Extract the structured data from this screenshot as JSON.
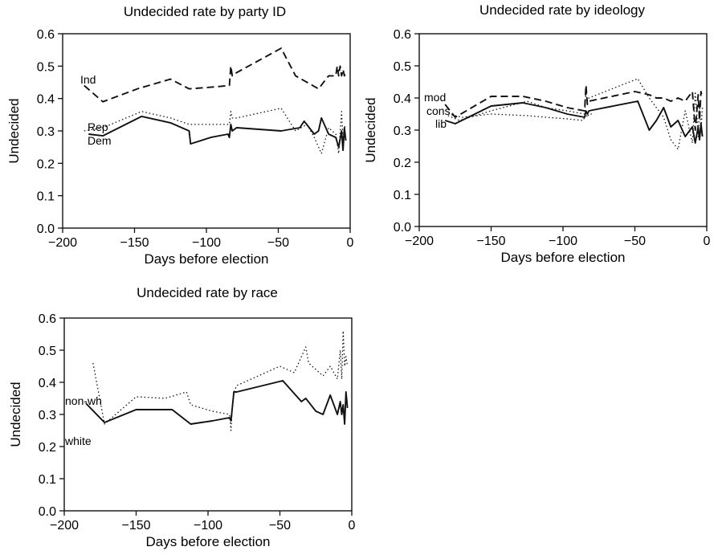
{
  "chart_data": [
    {
      "type": "line",
      "title": "Undecided rate by party ID",
      "xlabel": "Days before election",
      "ylabel": "Undecided",
      "xlim": [
        -200,
        0
      ],
      "ylim": [
        0,
        0.6
      ],
      "xticks": [
        "-200",
        "-150",
        "-100",
        "-50",
        "0"
      ],
      "yticks": [
        "0.0",
        "0.1",
        "0.2",
        "0.3",
        "0.4",
        "0.5",
        "0.6"
      ],
      "grid": false,
      "series": [
        {
          "name": "Ind",
          "style": "dashed",
          "x": [
            -185,
            -172,
            -148,
            -125,
            -112,
            -97,
            -84,
            -83,
            -82,
            -79,
            -48,
            -38,
            -22,
            -15,
            -10,
            -9,
            -8,
            -7,
            -6,
            -5,
            -4,
            -3
          ],
          "y": [
            0.44,
            0.39,
            0.43,
            0.46,
            0.43,
            0.435,
            0.44,
            0.5,
            0.47,
            0.48,
            0.555,
            0.47,
            0.43,
            0.47,
            0.47,
            0.5,
            0.47,
            0.5,
            0.47,
            0.49,
            0.47,
            0.48
          ]
        },
        {
          "name": "Rep",
          "style": "dotted",
          "x": [
            -185,
            -172,
            -145,
            -125,
            -112,
            -97,
            -84,
            -83,
            -82,
            -79,
            -48,
            -38,
            -30,
            -25,
            -20,
            -15,
            -10,
            -8,
            -6,
            -5,
            -4,
            -3
          ],
          "y": [
            0.3,
            0.31,
            0.36,
            0.34,
            0.32,
            0.32,
            0.32,
            0.36,
            0.34,
            0.34,
            0.37,
            0.3,
            0.32,
            0.28,
            0.23,
            0.31,
            0.29,
            0.23,
            0.36,
            0.27,
            0.31,
            0.32
          ]
        },
        {
          "name": "Dem",
          "style": "solid",
          "x": [
            -182,
            -172,
            -145,
            -125,
            -112,
            -111,
            -97,
            -85,
            -84,
            -83,
            -82,
            -79,
            -48,
            -35,
            -32,
            -25,
            -22,
            -20,
            -15,
            -10,
            -8,
            -6,
            -5,
            -4,
            -3
          ],
          "y": [
            0.29,
            0.285,
            0.345,
            0.325,
            0.3,
            0.26,
            0.28,
            0.29,
            0.28,
            0.32,
            0.3,
            0.31,
            0.3,
            0.31,
            0.33,
            0.29,
            0.3,
            0.34,
            0.29,
            0.28,
            0.25,
            0.3,
            0.24,
            0.31,
            0.27
          ]
        }
      ]
    },
    {
      "type": "line",
      "title": "Undecided rate by ideology",
      "xlabel": "Days before election",
      "ylabel": "Undecided",
      "xlim": [
        -200,
        0
      ],
      "ylim": [
        0,
        0.6
      ],
      "xticks": [
        "-200",
        "-150",
        "-100",
        "-50",
        "0"
      ],
      "yticks": [
        "0.0",
        "0.1",
        "0.2",
        "0.3",
        "0.4",
        "0.5",
        "0.6"
      ],
      "grid": false,
      "series": [
        {
          "name": "mod",
          "style": "dashed",
          "x": [
            -182,
            -175,
            -150,
            -128,
            -112,
            -97,
            -85,
            -84,
            -83,
            -82,
            -50,
            -40,
            -35,
            -30,
            -25,
            -20,
            -15,
            -10,
            -8,
            -6,
            -5,
            -4,
            -3
          ],
          "y": [
            0.38,
            0.34,
            0.405,
            0.405,
            0.39,
            0.37,
            0.36,
            0.44,
            0.38,
            0.39,
            0.42,
            0.41,
            0.4,
            0.4,
            0.39,
            0.4,
            0.39,
            0.42,
            0.3,
            0.41,
            0.33,
            0.42,
            0.4
          ]
        },
        {
          "name": "cons",
          "style": "dotted",
          "x": [
            -180,
            -172,
            -150,
            -125,
            -112,
            -97,
            -85,
            -84,
            -83,
            -82,
            -48,
            -40,
            -35,
            -30,
            -25,
            -20,
            -15,
            -10,
            -8,
            -6,
            -5,
            -4,
            -3
          ],
          "y": [
            0.345,
            0.33,
            0.36,
            0.39,
            0.37,
            0.36,
            0.35,
            0.42,
            0.39,
            0.4,
            0.46,
            0.4,
            0.37,
            0.34,
            0.27,
            0.24,
            0.36,
            0.26,
            0.42,
            0.28,
            0.38,
            0.3,
            0.37
          ]
        },
        {
          "name": "lib",
          "style": "dotted",
          "x": [
            -180,
            -170,
            -150,
            -125,
            -112,
            -97,
            -86,
            -84,
            -83,
            -82,
            -80
          ],
          "y": [
            0.35,
            0.34,
            0.35,
            0.345,
            0.34,
            0.335,
            0.33,
            0.35,
            0.34,
            0.35,
            0.35
          ]
        },
        {
          "name": "",
          "style": "solid",
          "x": [
            -182,
            -175,
            -150,
            -128,
            -112,
            -97,
            -85,
            -84,
            -83,
            -82,
            -48,
            -40,
            -35,
            -30,
            -25,
            -20,
            -15,
            -10,
            -8,
            -6,
            -5,
            -4,
            -3
          ],
          "y": [
            0.33,
            0.32,
            0.375,
            0.385,
            0.37,
            0.35,
            0.34,
            0.36,
            0.35,
            0.36,
            0.39,
            0.3,
            0.33,
            0.37,
            0.31,
            0.33,
            0.28,
            0.31,
            0.26,
            0.31,
            0.27,
            0.32,
            0.28
          ]
        }
      ]
    },
    {
      "type": "line",
      "title": "Undecided rate by race",
      "xlabel": "Days before election",
      "ylabel": "Undecided",
      "xlim": [
        -200,
        0
      ],
      "ylim": [
        0,
        0.6
      ],
      "xticks": [
        "-200",
        "-150",
        "-100",
        "-50",
        "0"
      ],
      "yticks": [
        "0.0",
        "0.1",
        "0.2",
        "0.3",
        "0.4",
        "0.5",
        "0.6"
      ],
      "grid": false,
      "series": [
        {
          "name": "non-wh",
          "style": "dotted",
          "x": [
            -180,
            -172,
            -150,
            -130,
            -115,
            -112,
            -97,
            -85,
            -84,
            -83,
            -82,
            -80,
            -50,
            -40,
            -32,
            -30,
            -20,
            -15,
            -10,
            -8,
            -7,
            -6,
            -5,
            -4,
            -3
          ],
          "y": [
            0.46,
            0.27,
            0.355,
            0.35,
            0.37,
            0.33,
            0.31,
            0.3,
            0.25,
            0.33,
            0.37,
            0.39,
            0.45,
            0.43,
            0.51,
            0.46,
            0.42,
            0.45,
            0.41,
            0.5,
            0.41,
            0.56,
            0.45,
            0.48,
            0.45
          ]
        },
        {
          "name": "white",
          "style": "solid",
          "x": [
            -185,
            -172,
            -150,
            -125,
            -112,
            -97,
            -85,
            -84,
            -82,
            -80,
            -48,
            -35,
            -32,
            -25,
            -20,
            -15,
            -10,
            -8,
            -7,
            -6,
            -5,
            -4,
            -3
          ],
          "y": [
            0.335,
            0.275,
            0.315,
            0.315,
            0.27,
            0.28,
            0.29,
            0.28,
            0.37,
            0.37,
            0.405,
            0.34,
            0.35,
            0.31,
            0.3,
            0.36,
            0.3,
            0.34,
            0.3,
            0.33,
            0.27,
            0.37,
            0.32
          ]
        }
      ]
    }
  ]
}
